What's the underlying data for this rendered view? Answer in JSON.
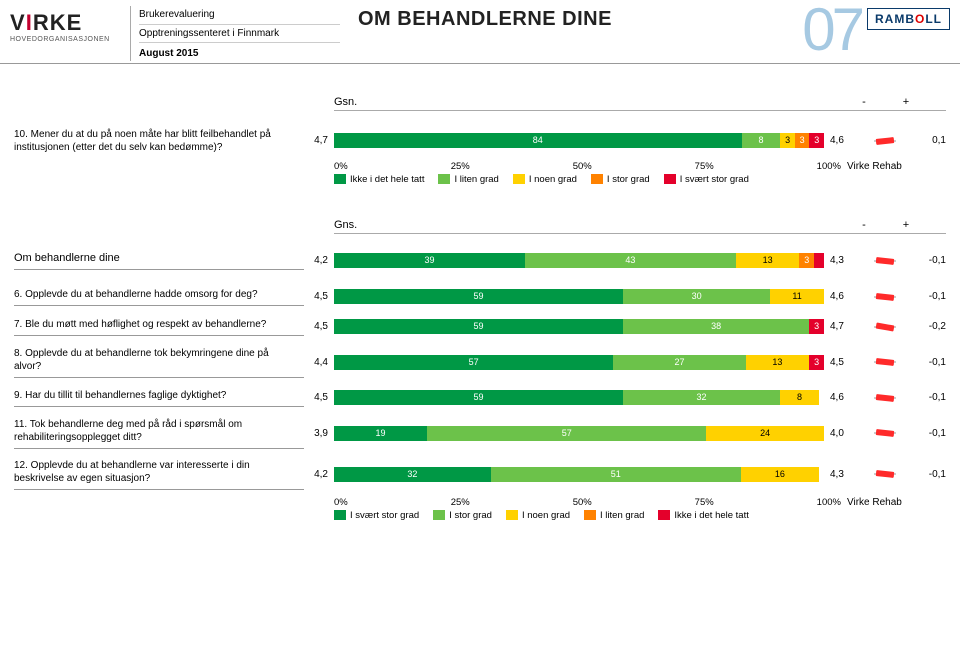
{
  "header": {
    "logo_sub": "HOVEDORGANISASJONEN",
    "meta_line1": "Brukerevaluering",
    "meta_line2": "Opptreningssenteret i Finnmark",
    "meta_date": "August 2015",
    "title": "OM BEHANDLERNE DINE",
    "page_num": "07",
    "ramboll": "RAMBOLL"
  },
  "colors": {
    "c_darkgreen": "#009845",
    "c_green": "#6cc24a",
    "c_yellow": "#ffd100",
    "c_orange": "#ff8200",
    "c_red": "#e4002b",
    "worm_red": "#ff2a2a",
    "worm_track": "#cccccc"
  },
  "chart1": {
    "gsn_label": "Gsn.",
    "minus": "-",
    "plus": "+",
    "question": "10. Mener du at du på noen måte har blitt feilbehandlet på institusjonen (etter det du selv kan bedømme)?",
    "pre_value": "4,7",
    "segments": [
      {
        "v": 84,
        "label": "84",
        "ckey": "c_darkgreen"
      },
      {
        "v": 8,
        "label": "8",
        "ckey": "c_green"
      },
      {
        "v": 3,
        "label": "3",
        "ckey": "c_yellow"
      },
      {
        "v": 3,
        "label": "3",
        "ckey": "c_orange"
      },
      {
        "v": 3,
        "label": "3",
        "ckey": "c_red"
      }
    ],
    "avg": "4,6",
    "diff": "0,1",
    "worm_tilt": 6,
    "axis": [
      "0%",
      "25%",
      "50%",
      "75%",
      "100%"
    ],
    "axis_right": "Virke Rehab",
    "legend": [
      {
        "ckey": "c_darkgreen",
        "label": "Ikke i det hele tatt"
      },
      {
        "ckey": "c_green",
        "label": "I liten grad"
      },
      {
        "ckey": "c_yellow",
        "label": "I noen grad"
      },
      {
        "ckey": "c_orange",
        "label": "I stor grad"
      },
      {
        "ckey": "c_red",
        "label": "I svært stor grad"
      }
    ]
  },
  "chart2": {
    "gns_label": "Gns.",
    "minus": "-",
    "plus": "+",
    "heading_label": "Om behandlerne dine",
    "rows": [
      {
        "label": "Om behandlerne dine",
        "pre": "4,2",
        "heading": true,
        "segments": [
          {
            "v": 39,
            "label": "39",
            "ckey": "c_darkgreen"
          },
          {
            "v": 43,
            "label": "43",
            "ckey": "c_green"
          },
          {
            "v": 13,
            "label": "13",
            "ckey": "c_yellow"
          },
          {
            "v": 3,
            "label": "3",
            "ckey": "c_orange"
          },
          {
            "v": 2,
            "label": "",
            "ckey": "c_red"
          }
        ],
        "avg": "4,3",
        "diff": "-0,1",
        "worm_tilt": -6
      },
      {
        "label": "6. Opplevde du at behandlerne hadde omsorg for deg?",
        "pre": "4,5",
        "segments": [
          {
            "v": 59,
            "label": "59",
            "ckey": "c_darkgreen"
          },
          {
            "v": 30,
            "label": "30",
            "ckey": "c_green"
          },
          {
            "v": 11,
            "label": "11",
            "ckey": "c_yellow"
          }
        ],
        "avg": "4,6",
        "diff": "-0,1",
        "worm_tilt": -6
      },
      {
        "label": "7. Ble du møtt med høflighet og respekt av behandlerne?",
        "pre": "4,5",
        "segments": [
          {
            "v": 59,
            "label": "59",
            "ckey": "c_darkgreen"
          },
          {
            "v": 38,
            "label": "38",
            "ckey": "c_green"
          },
          {
            "v": 3,
            "label": "3",
            "ckey": "c_red"
          }
        ],
        "avg": "4,7",
        "diff": "-0,2",
        "worm_tilt": -10
      },
      {
        "label": "8. Opplevde du at behandlerne tok bekymringene dine på alvor?",
        "pre": "4,4",
        "segments": [
          {
            "v": 57,
            "label": "57",
            "ckey": "c_darkgreen"
          },
          {
            "v": 27,
            "label": "27",
            "ckey": "c_green"
          },
          {
            "v": 13,
            "label": "13",
            "ckey": "c_yellow"
          },
          {
            "v": 3,
            "label": "3",
            "ckey": "c_red"
          }
        ],
        "avg": "4,5",
        "diff": "-0,1",
        "worm_tilt": -6
      },
      {
        "label": "9. Har du tillit til behandlernes faglige dyktighet?",
        "pre": "4,5",
        "segments": [
          {
            "v": 59,
            "label": "59",
            "ckey": "c_darkgreen"
          },
          {
            "v": 32,
            "label": "32",
            "ckey": "c_green"
          },
          {
            "v": 8,
            "label": "8",
            "ckey": "c_yellow"
          }
        ],
        "avg": "4,6",
        "diff": "-0,1",
        "worm_tilt": -6
      },
      {
        "label": "11. Tok behandlerne deg med på råd i spørsmål om rehabiliteringsopplegget ditt?",
        "pre": "3,9",
        "segments": [
          {
            "v": 19,
            "label": "19",
            "ckey": "c_darkgreen"
          },
          {
            "v": 57,
            "label": "57",
            "ckey": "c_green"
          },
          {
            "v": 24,
            "label": "24",
            "ckey": "c_yellow"
          }
        ],
        "avg": "4,0",
        "diff": "-0,1",
        "worm_tilt": -6
      },
      {
        "label": "12. Opplevde du at behandlerne var interesserte i din beskrivelse av egen situasjon?",
        "pre": "4,2",
        "segments": [
          {
            "v": 32,
            "label": "32",
            "ckey": "c_darkgreen"
          },
          {
            "v": 51,
            "label": "51",
            "ckey": "c_green"
          },
          {
            "v": 16,
            "label": "16",
            "ckey": "c_yellow"
          }
        ],
        "avg": "4,3",
        "diff": "-0,1",
        "worm_tilt": -6
      }
    ],
    "axis": [
      "0%",
      "25%",
      "50%",
      "75%",
      "100%"
    ],
    "axis_right": "Virke Rehab",
    "legend": [
      {
        "ckey": "c_darkgreen",
        "label": "I svært stor grad"
      },
      {
        "ckey": "c_green",
        "label": "I stor grad"
      },
      {
        "ckey": "c_yellow",
        "label": "I noen grad"
      },
      {
        "ckey": "c_orange",
        "label": "I liten grad"
      },
      {
        "ckey": "c_red",
        "label": "Ikke i det hele tatt"
      }
    ]
  }
}
